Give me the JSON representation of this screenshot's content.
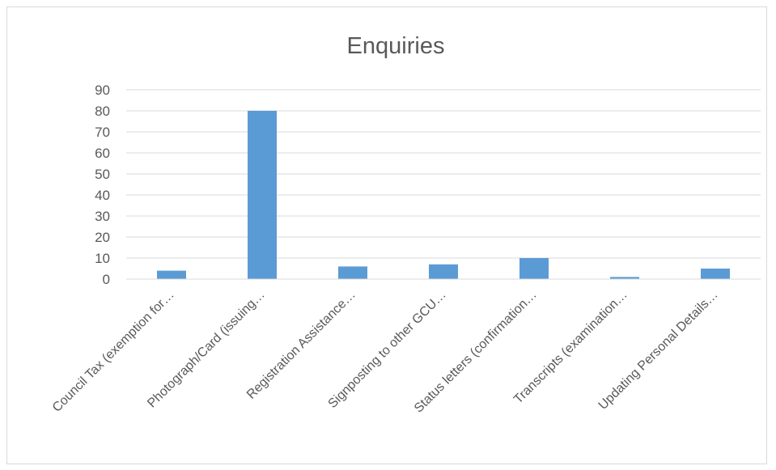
{
  "chart_data": {
    "type": "bar",
    "title": "Enquiries",
    "categories": [
      "Council Tax (exemption for…",
      "Photograph/Card (issuing…",
      "Registration Assistance…",
      "Signposting to other GCU…",
      "Status letters (confirmation…",
      "Transcripts (examination…",
      "Updating Personal Details…"
    ],
    "values": [
      4,
      80,
      6,
      7,
      10,
      1,
      5
    ],
    "ylim": [
      0,
      90
    ],
    "yticks": [
      "0",
      "10",
      "20",
      "30",
      "40",
      "50",
      "60",
      "70",
      "80",
      "90"
    ],
    "grid": true,
    "legend": "none",
    "bar_color": "#5b9bd5"
  }
}
